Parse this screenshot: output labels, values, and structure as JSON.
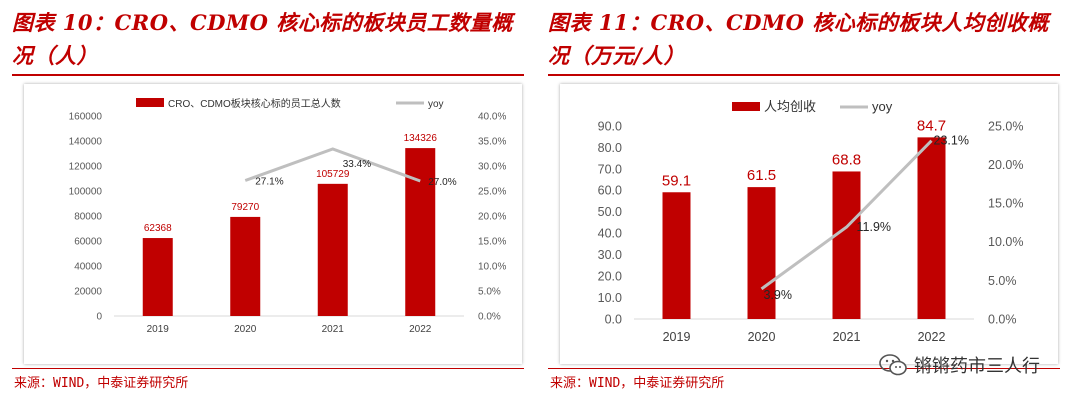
{
  "left": {
    "title_line1": "图表 10：CRO、CDMO 核心标的板块员工数量概",
    "title_line2": "况（人）",
    "source": "来源：WIND，中泰证券研究所",
    "chart_data": {
      "type": "bar",
      "categories": [
        "2019",
        "2020",
        "2021",
        "2022"
      ],
      "series": [
        {
          "name": "CRO、CDMO板块核心标的员工总人数",
          "values": [
            62368,
            79270,
            105729,
            134326
          ],
          "axis": "left",
          "color": "#c00000",
          "labels": [
            "62368",
            "79270",
            "105729",
            "134326"
          ]
        },
        {
          "name": "yoy",
          "type": "line",
          "values": [
            null,
            27.1,
            33.4,
            27.0
          ],
          "axis": "right",
          "color": "#bfbfbf",
          "labels": [
            "",
            "27.1%",
            "33.4%",
            "27.0%"
          ]
        }
      ],
      "y_left": {
        "min": 0,
        "max": 160000,
        "step": 20000,
        "ticks": [
          "0",
          "20000",
          "40000",
          "60000",
          "80000",
          "100000",
          "120000",
          "140000",
          "160000"
        ]
      },
      "y_right": {
        "min": 0,
        "max": 40,
        "step": 5,
        "ticks": [
          "0.0%",
          "5.0%",
          "10.0%",
          "15.0%",
          "20.0%",
          "25.0%",
          "30.0%",
          "35.0%",
          "40.0%"
        ]
      },
      "legend_position": "top",
      "grid": false
    }
  },
  "right": {
    "title_line1": "图表 11：CRO、CDMO 核心标的板块人均创收概",
    "title_line2": "况（万元/人）",
    "source": "来源：WIND，中泰证券研究所",
    "watermark": "锵锵药市三人行",
    "chart_data": {
      "type": "bar",
      "categories": [
        "2019",
        "2020",
        "2021",
        "2022"
      ],
      "series": [
        {
          "name": "人均创收",
          "values": [
            59.1,
            61.5,
            68.8,
            84.7
          ],
          "axis": "left",
          "color": "#c00000",
          "labels": [
            "59.1",
            "61.5",
            "68.8",
            "84.7"
          ]
        },
        {
          "name": "yoy",
          "type": "line",
          "values": [
            null,
            3.9,
            11.9,
            23.1
          ],
          "axis": "right",
          "color": "#bfbfbf",
          "labels": [
            "",
            "3.9%",
            "11.9%",
            "23.1%"
          ]
        }
      ],
      "y_left": {
        "min": 0,
        "max": 90,
        "step": 10,
        "ticks": [
          "0.0",
          "10.0",
          "20.0",
          "30.0",
          "40.0",
          "50.0",
          "60.0",
          "70.0",
          "80.0",
          "90.0"
        ]
      },
      "y_right": {
        "min": 0,
        "max": 25,
        "step": 5,
        "ticks": [
          "0.0%",
          "5.0%",
          "10.0%",
          "15.0%",
          "20.0%",
          "25.0%"
        ]
      },
      "legend_position": "top",
      "grid": false
    }
  }
}
